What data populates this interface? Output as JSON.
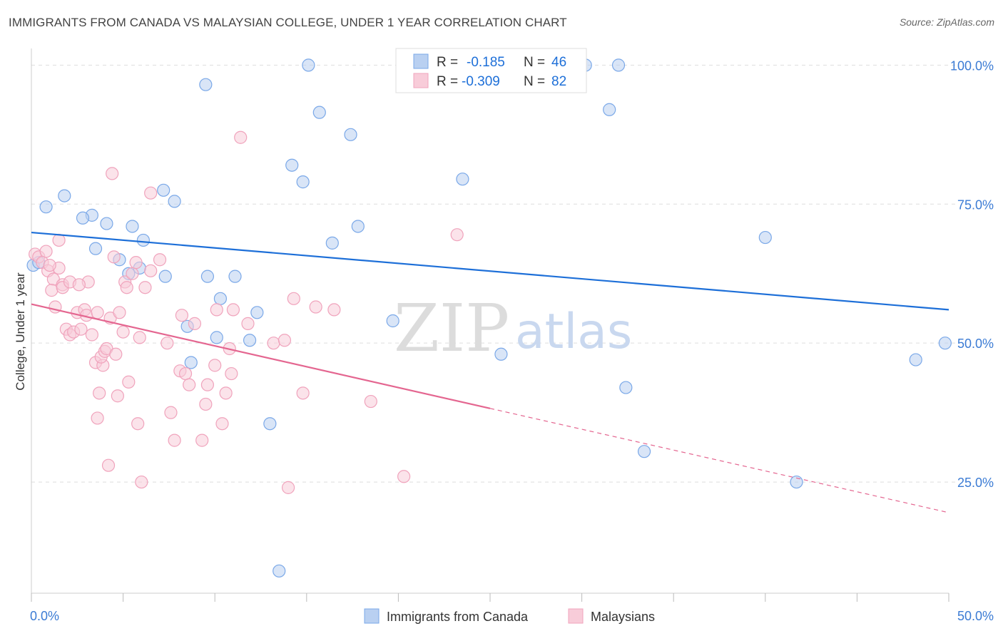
{
  "title": "IMMIGRANTS FROM CANADA VS MALAYSIAN COLLEGE, UNDER 1 YEAR CORRELATION CHART",
  "source": "Source: ZipAtlas.com",
  "watermark": {
    "zip": "ZIP",
    "atlas": "atlas"
  },
  "chart_data": {
    "type": "scatter",
    "xlabel": "",
    "ylabel": "College, Under 1 year",
    "xlim": [
      0,
      50
    ],
    "ylim": [
      5,
      103
    ],
    "x_tick_labels": [
      {
        "value": 0,
        "label": "0.0%"
      },
      {
        "value": 50,
        "label": "50.0%"
      }
    ],
    "y_ticks": [
      {
        "value": 100,
        "label": "100.0%"
      },
      {
        "value": 75,
        "label": "75.0%"
      },
      {
        "value": 50,
        "label": "50.0%"
      },
      {
        "value": 25,
        "label": "25.0%"
      }
    ],
    "grid": "horizontal dashed",
    "legend_position": "top-center",
    "stats": [
      {
        "r_label": "R =",
        "r_value": "-0.185",
        "n_label": "N =",
        "n_value": "46"
      },
      {
        "r_label": "R =",
        "r_value": "-0.309",
        "n_label": "N =",
        "n_value": "82"
      }
    ],
    "series": [
      {
        "name": "Immigrants from Canada",
        "color": "#7aa8e8",
        "fill": "#b9d0f1",
        "trend_color": "#1d6fd8",
        "trend": {
          "x0": 0,
          "y0": 69.9,
          "x1": 50,
          "y1": 56.0,
          "dashed_from": null
        },
        "points": [
          [
            0.1,
            64.0
          ],
          [
            0.8,
            74.5
          ],
          [
            1.8,
            76.5
          ],
          [
            3.3,
            73.0
          ],
          [
            2.8,
            72.5
          ],
          [
            4.1,
            71.5
          ],
          [
            5.5,
            71.0
          ],
          [
            3.5,
            67.0
          ],
          [
            4.8,
            65.0
          ],
          [
            6.1,
            68.5
          ],
          [
            5.3,
            62.5
          ],
          [
            5.9,
            63.5
          ],
          [
            7.2,
            77.5
          ],
          [
            7.8,
            75.5
          ],
          [
            7.3,
            62.0
          ],
          [
            9.5,
            96.5
          ],
          [
            8.5,
            53.0
          ],
          [
            9.6,
            62.0
          ],
          [
            10.3,
            58.0
          ],
          [
            11.1,
            62.0
          ],
          [
            8.7,
            46.5
          ],
          [
            10.1,
            51.0
          ],
          [
            11.9,
            50.5
          ],
          [
            12.3,
            55.5
          ],
          [
            13.0,
            35.5
          ],
          [
            13.5,
            9.0
          ],
          [
            14.2,
            82.0
          ],
          [
            14.8,
            79.0
          ],
          [
            15.1,
            100.0
          ],
          [
            15.7,
            91.5
          ],
          [
            17.4,
            87.5
          ],
          [
            16.4,
            68.0
          ],
          [
            17.8,
            71.0
          ],
          [
            19.7,
            54.0
          ],
          [
            23.5,
            79.5
          ],
          [
            25.6,
            48.0
          ],
          [
            30.2,
            100.0
          ],
          [
            31.5,
            92.0
          ],
          [
            32.4,
            42.0
          ],
          [
            32.0,
            100.0
          ],
          [
            33.4,
            30.5
          ],
          [
            40.0,
            69.0
          ],
          [
            41.7,
            25.0
          ],
          [
            48.2,
            47.0
          ],
          [
            49.8,
            50.0
          ],
          [
            0.4,
            64.5
          ]
        ]
      },
      {
        "name": "Malaysians",
        "color": "#f0a3bc",
        "fill": "#f8ccd9",
        "trend_color": "#e46690",
        "trend": {
          "x0": 0,
          "y0": 57.0,
          "x1": 50,
          "y1": 19.5,
          "dashed_from": 25.0
        },
        "points": [
          [
            0.2,
            66.0
          ],
          [
            0.4,
            65.5
          ],
          [
            0.6,
            64.5
          ],
          [
            0.8,
            66.5
          ],
          [
            0.9,
            63.0
          ],
          [
            1.2,
            61.5
          ],
          [
            1.1,
            59.5
          ],
          [
            1.5,
            63.5
          ],
          [
            1.7,
            60.5
          ],
          [
            1.3,
            56.5
          ],
          [
            1.5,
            68.5
          ],
          [
            1.7,
            60.0
          ],
          [
            1.9,
            52.5
          ],
          [
            2.1,
            51.5
          ],
          [
            2.3,
            52.0
          ],
          [
            2.1,
            61.0
          ],
          [
            2.5,
            55.5
          ],
          [
            2.7,
            52.5
          ],
          [
            2.9,
            56.0
          ],
          [
            3.0,
            55.0
          ],
          [
            3.1,
            61.0
          ],
          [
            3.3,
            51.5
          ],
          [
            3.5,
            46.5
          ],
          [
            3.6,
            36.5
          ],
          [
            3.7,
            41.0
          ],
          [
            3.9,
            46.0
          ],
          [
            3.8,
            47.5
          ],
          [
            4.0,
            48.5
          ],
          [
            4.1,
            49.0
          ],
          [
            4.2,
            28.0
          ],
          [
            4.3,
            54.5
          ],
          [
            4.4,
            80.5
          ],
          [
            4.5,
            65.5
          ],
          [
            4.6,
            48.0
          ],
          [
            4.7,
            40.5
          ],
          [
            4.8,
            55.5
          ],
          [
            5.0,
            52.0
          ],
          [
            5.1,
            61.0
          ],
          [
            5.2,
            60.0
          ],
          [
            5.3,
            43.0
          ],
          [
            5.5,
            62.5
          ],
          [
            5.8,
            35.5
          ],
          [
            5.9,
            51.0
          ],
          [
            6.0,
            25.0
          ],
          [
            6.5,
            63.0
          ],
          [
            6.5,
            77.0
          ],
          [
            7.0,
            65.0
          ],
          [
            7.4,
            50.0
          ],
          [
            7.6,
            37.5
          ],
          [
            7.8,
            32.5
          ],
          [
            8.1,
            45.0
          ],
          [
            8.2,
            55.0
          ],
          [
            8.4,
            44.5
          ],
          [
            8.6,
            42.5
          ],
          [
            8.9,
            53.5
          ],
          [
            9.3,
            32.5
          ],
          [
            9.5,
            39.0
          ],
          [
            9.6,
            42.5
          ],
          [
            10.0,
            46.0
          ],
          [
            10.1,
            56.0
          ],
          [
            10.4,
            35.5
          ],
          [
            10.6,
            41.0
          ],
          [
            10.8,
            49.0
          ],
          [
            10.9,
            44.5
          ],
          [
            11.0,
            56.0
          ],
          [
            11.4,
            87.0
          ],
          [
            11.8,
            53.5
          ],
          [
            13.2,
            50.0
          ],
          [
            13.8,
            50.5
          ],
          [
            14.0,
            24.0
          ],
          [
            14.3,
            58.0
          ],
          [
            14.8,
            41.0
          ],
          [
            15.5,
            56.5
          ],
          [
            16.5,
            56.0
          ],
          [
            18.5,
            39.5
          ],
          [
            20.3,
            26.0
          ],
          [
            23.2,
            69.5
          ],
          [
            3.6,
            55.5
          ],
          [
            2.6,
            60.5
          ],
          [
            6.2,
            60.0
          ],
          [
            5.7,
            64.5
          ],
          [
            1.0,
            64.0
          ]
        ]
      }
    ]
  },
  "bottom_legend": [
    "Immigrants from Canada",
    "Malaysians"
  ]
}
